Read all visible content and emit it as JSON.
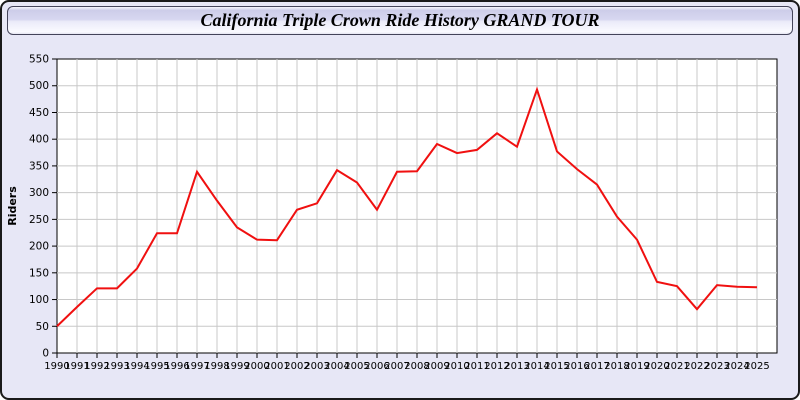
{
  "title": "California Triple Crown Ride History GRAND TOUR",
  "colors": {
    "page_background": "#e7e7f6",
    "plot_background": "#ffffff",
    "gridline": "#c8c8c8",
    "axis": "#000000",
    "series_line": "#f01010"
  },
  "chart_data": {
    "type": "line",
    "title": "California Triple Crown Ride History GRAND TOUR",
    "xlabel": "",
    "ylabel": "Riders",
    "ylim": [
      0,
      550
    ],
    "ytick_step": 50,
    "grid": true,
    "legend_position": "none",
    "x": [
      1990,
      1991,
      1992,
      1993,
      1994,
      1995,
      1996,
      1997,
      1998,
      1999,
      2000,
      2001,
      2002,
      2003,
      2004,
      2005,
      2006,
      2007,
      2008,
      2009,
      2010,
      2011,
      2012,
      2013,
      2014,
      2015,
      2016,
      2017,
      2018,
      2019,
      2020,
      2021,
      2022,
      2023,
      2024,
      2025
    ],
    "series": [
      {
        "name": "Riders",
        "color": "#f01010",
        "values": [
          50,
          86,
          121,
          121,
          158,
          224,
          224,
          339,
          285,
          235,
          212,
          211,
          268,
          280,
          342,
          319,
          268,
          339,
          340,
          391,
          374,
          380,
          411,
          386,
          493,
          377,
          344,
          315,
          255,
          212,
          133,
          125,
          82,
          127,
          124,
          123
        ]
      }
    ]
  }
}
